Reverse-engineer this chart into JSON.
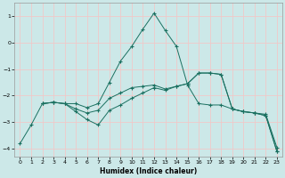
{
  "xlabel": "Humidex (Indice chaleur)",
  "bg_color": "#cce8e8",
  "grid_color": "#f0c8c8",
  "line_color": "#1a7060",
  "xlim": [
    -0.5,
    23.5
  ],
  "ylim": [
    -4.3,
    1.5
  ],
  "yticks": [
    -4,
    -3,
    -2,
    -1,
    0,
    1
  ],
  "xticks": [
    0,
    1,
    2,
    3,
    4,
    5,
    6,
    7,
    8,
    9,
    10,
    11,
    12,
    13,
    14,
    15,
    16,
    17,
    18,
    19,
    20,
    21,
    22,
    23
  ],
  "s1_x": [
    0,
    1,
    2,
    3,
    4,
    5,
    6,
    7,
    8,
    9,
    10,
    11,
    12,
    13,
    14,
    15,
    16,
    17,
    18,
    19,
    20,
    21,
    22,
    23
  ],
  "s1_y": [
    -3.8,
    -3.1,
    -2.3,
    -2.25,
    -2.3,
    -2.3,
    -2.45,
    -2.3,
    -1.5,
    -0.7,
    -0.15,
    0.5,
    1.1,
    0.45,
    -0.15,
    -1.6,
    -2.3,
    -2.35,
    -2.35,
    -2.5,
    -2.6,
    -2.65,
    -2.7,
    -3.95
  ],
  "s2_x": [
    2,
    3,
    4,
    5,
    6,
    7,
    8,
    9,
    10,
    11,
    12,
    13,
    14,
    15,
    16,
    17,
    18,
    19,
    20,
    21,
    22,
    23
  ],
  "s2_y": [
    -2.3,
    -2.25,
    -2.3,
    -2.5,
    -2.65,
    -2.55,
    -2.1,
    -1.9,
    -1.7,
    -1.65,
    -1.6,
    -1.75,
    -1.65,
    -1.55,
    -1.15,
    -1.15,
    -1.2,
    -2.5,
    -2.6,
    -2.65,
    -2.75,
    -4.1
  ],
  "s3_x": [
    2,
    3,
    4,
    5,
    6,
    7,
    8,
    9,
    10,
    11,
    12,
    13,
    14,
    15,
    16,
    17,
    18,
    19,
    20,
    21,
    22,
    23
  ],
  "s3_y": [
    -2.3,
    -2.25,
    -2.3,
    -2.6,
    -2.9,
    -3.1,
    -2.55,
    -2.35,
    -2.1,
    -1.9,
    -1.7,
    -1.8,
    -1.65,
    -1.55,
    -1.15,
    -1.15,
    -1.2,
    -2.5,
    -2.6,
    -2.65,
    -2.75,
    -4.1
  ]
}
